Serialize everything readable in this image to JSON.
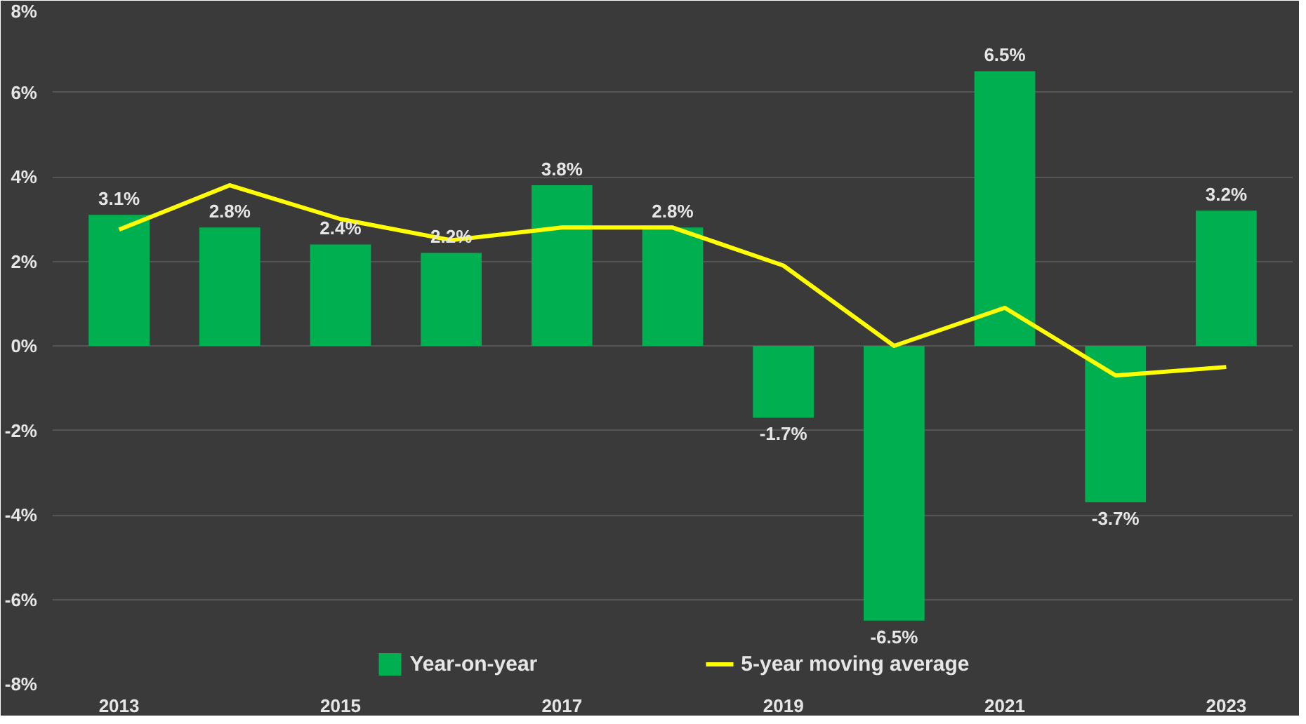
{
  "chart_data": {
    "type": "bar",
    "categories": [
      "2013",
      null,
      "2015",
      null,
      "2017",
      null,
      "2019",
      null,
      "2021",
      null,
      "2023"
    ],
    "series": [
      {
        "name": "Year-on-year",
        "color": "#00b050",
        "values": [
          3.1,
          2.8,
          2.4,
          2.2,
          3.8,
          2.8,
          -1.7,
          -6.5,
          6.5,
          -3.7,
          3.2
        ],
        "value_labels": [
          "3.1%",
          "2.8%",
          "2.4%",
          "2.2%",
          "3.8%",
          "2.8%",
          "-1.7%",
          "-6.5%",
          "6.5%",
          "-3.7%",
          "3.2%"
        ]
      },
      {
        "name": "5-year moving average",
        "type": "line",
        "color": "#ffff00",
        "values": [
          2.75,
          3.8,
          3.0,
          2.5,
          2.8,
          2.8,
          1.9,
          0.0,
          0.9,
          -0.7,
          -0.5
        ]
      }
    ],
    "ylim": [
      -8,
      8
    ],
    "yticks": [
      {
        "value": -8,
        "label": "-8%"
      },
      {
        "value": -6,
        "label": "-6%"
      },
      {
        "value": -4,
        "label": "-4%"
      },
      {
        "value": -2,
        "label": "-2%"
      },
      {
        "value": 0,
        "label": "0%"
      },
      {
        "value": 2,
        "label": "2%"
      },
      {
        "value": 4,
        "label": "4%"
      },
      {
        "value": 6,
        "label": "6%"
      },
      {
        "value": 8,
        "label": "8%"
      }
    ],
    "grid": "y",
    "legend": "bottom",
    "marker": "none",
    "line_style": "solid"
  }
}
